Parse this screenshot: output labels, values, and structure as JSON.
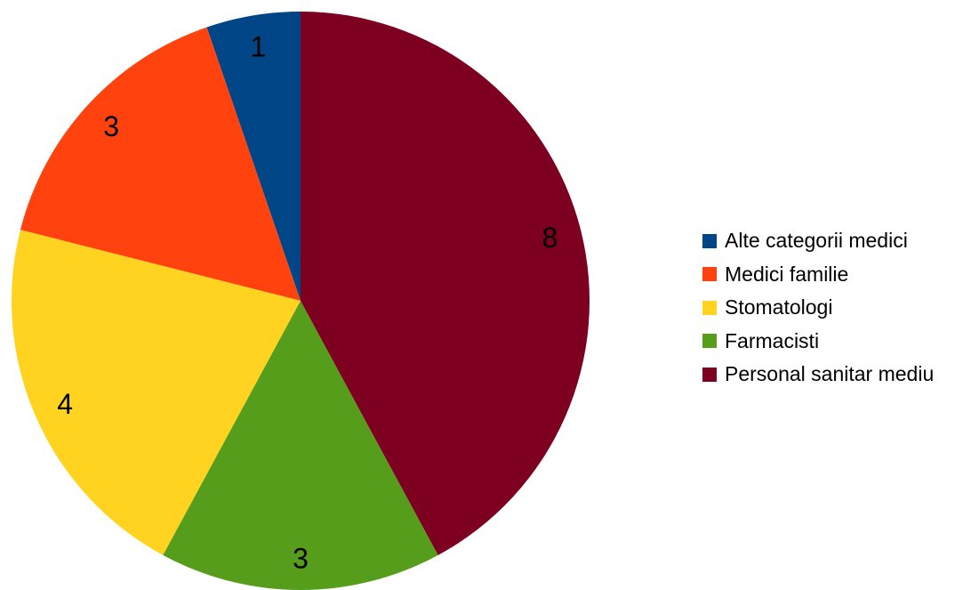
{
  "chart_data": {
    "type": "pie",
    "title": "",
    "slices": [
      {
        "label": "Alte categorii medici",
        "value": 1,
        "color": "#004586"
      },
      {
        "label": "Medici familie",
        "value": 3,
        "color": "#ff420e"
      },
      {
        "label": "Stomatologi",
        "value": 4,
        "color": "#ffd320"
      },
      {
        "label": "Farmacisti",
        "value": 3,
        "color": "#579d1c"
      },
      {
        "label": "Personal sanitar mediu",
        "value": 8,
        "color": "#7e0021"
      }
    ],
    "start_angle_deg": 0,
    "direction": "counterclockwise",
    "data_labels": true,
    "legend": "right"
  }
}
